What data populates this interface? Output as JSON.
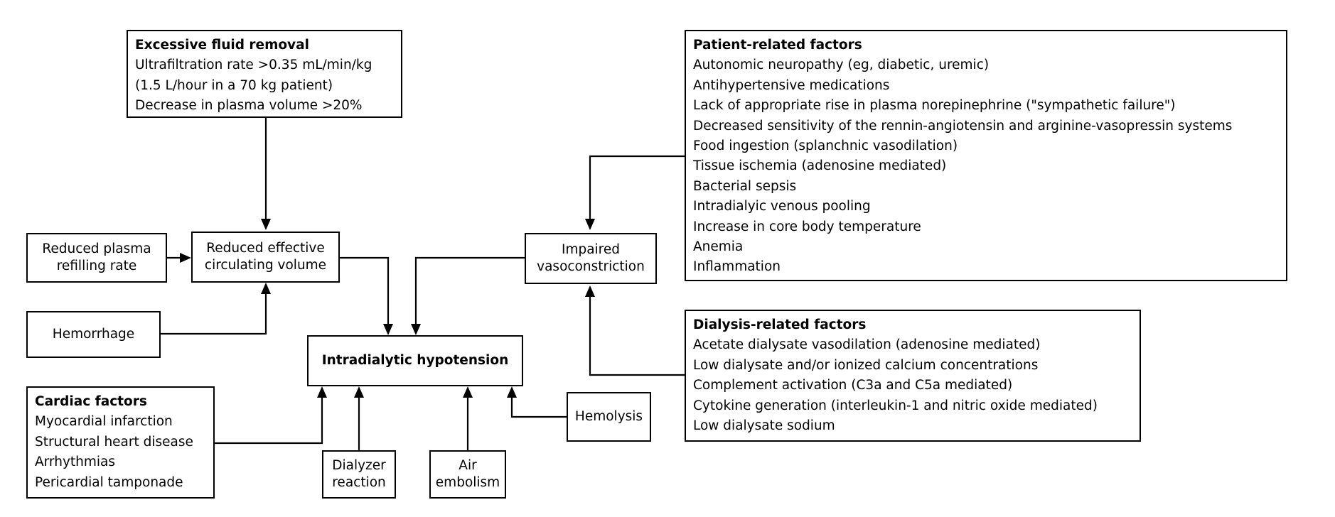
{
  "boxes": {
    "excessive_fluid": {
      "title": "Excessive fluid removal",
      "items": [
        "Ultrafiltration rate >0.35 mL/min/kg",
        "(1.5 L/hour in a 70 kg patient)",
        "Decrease in plasma volume >20%"
      ]
    },
    "patient_factors": {
      "title": "Patient-related factors",
      "items": [
        "Autonomic neuropathy (eg, diabetic, uremic)",
        "Antihypertensive medications",
        "Lack of appropriate rise in plasma norepinephrine (\"sympathetic failure\")",
        "Decreased sensitivity of the rennin-angiotensin and arginine-vasopressin systems",
        "Food ingestion (splanchnic vasodilation)",
        "Tissue ischemia (adenosine mediated)",
        "Bacterial sepsis",
        "Intradialyic venous pooling",
        "Increase in core body temperature",
        "Anemia",
        "Inflammation"
      ]
    },
    "reduced_refilling": {
      "line1": "Reduced plasma",
      "line2": "refilling rate"
    },
    "reduced_volume": {
      "line1": "Reduced effective",
      "line2": "circulating volume"
    },
    "impaired_vaso": {
      "line1": "Impaired",
      "line2": "vasoconstriction"
    },
    "hemorrhage": {
      "label": "Hemorrhage"
    },
    "hypotension": {
      "label": "Intradialytic hypotension"
    },
    "dialysis_factors": {
      "title": "Dialysis-related factors",
      "items": [
        "Acetate dialysate vasodilation (adenosine mediated)",
        "Low dialysate and/or ionized calcium concentrations",
        "Complement activation (C3a and C5a mediated)",
        "Cytokine generation (interleukin-1 and nitric oxide mediated)",
        "Low dialysate sodium"
      ]
    },
    "cardiac_factors": {
      "title": "Cardiac factors",
      "items": [
        "Myocardial infarction",
        "Structural heart disease",
        "Arrhythmias",
        "Pericardial tamponade"
      ]
    },
    "dialyzer_reaction": {
      "line1": "Dialyzer",
      "line2": "reaction"
    },
    "air_embolism": {
      "line1": "Air",
      "line2": "embolism"
    },
    "hemolysis": {
      "label": "Hemolysis"
    }
  }
}
